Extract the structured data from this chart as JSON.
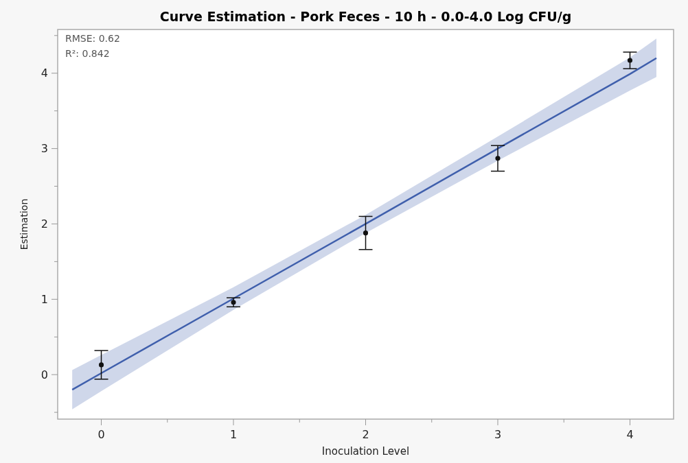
{
  "chart_data": {
    "type": "scatter",
    "title": "Curve Estimation - Pork Feces - 10 h - 0.0-4.0 Log CFU/g",
    "xlabel": "Inoculation Level",
    "ylabel": "Estimation",
    "annotations": [
      "RMSE: 0.62",
      "R²: 0.842"
    ],
    "xlim": [
      -0.33,
      4.33
    ],
    "ylim": [
      -0.59,
      4.58
    ],
    "xticks": [
      0,
      {
        "value": 0.5,
        "label": null
      },
      1,
      {
        "value": 1.5,
        "label": null
      },
      2,
      {
        "value": 2.5,
        "label": null
      },
      3,
      {
        "value": 3.5,
        "label": null
      },
      4
    ],
    "yticks": [
      {
        "value": -0.5,
        "label": null
      },
      0,
      {
        "value": 0.5,
        "label": null
      },
      1,
      {
        "value": 1.5,
        "label": null
      },
      2,
      {
        "value": 2.5,
        "label": null
      },
      3,
      {
        "value": 3.5,
        "label": null
      },
      4,
      {
        "value": 4.5,
        "label": null
      }
    ],
    "grid": false,
    "series": [
      {
        "type": "line",
        "color": "#3f5fac",
        "line_style": "solid",
        "x": [
          -0.22,
          0,
          1,
          2,
          3,
          4,
          4.2
        ],
        "values": [
          -0.2,
          0.02,
          1.01,
          2.0,
          3.0,
          3.99,
          4.2
        ],
        "lower": [
          -0.46,
          -0.22,
          0.86,
          1.88,
          2.84,
          3.77,
          3.95
        ],
        "upper": [
          0.06,
          0.26,
          1.16,
          2.12,
          3.16,
          4.21,
          4.46
        ]
      },
      {
        "color": "#111111",
        "marker": "circle",
        "x": [
          0,
          1,
          2,
          3,
          4
        ],
        "values": [
          0.13,
          0.96,
          1.88,
          2.87,
          4.17
        ],
        "errors": [
          [
            -0.06,
            0.32
          ],
          [
            0.9,
            1.02
          ],
          [
            1.66,
            2.1
          ],
          [
            2.7,
            3.04
          ],
          [
            4.06,
            4.28
          ]
        ]
      }
    ]
  }
}
